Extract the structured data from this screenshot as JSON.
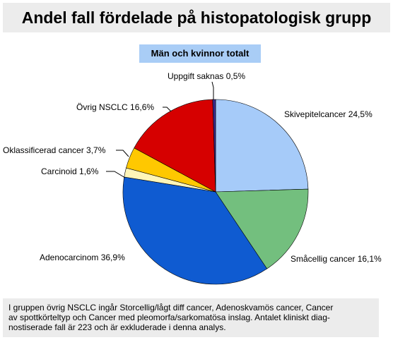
{
  "chart_data": {
    "type": "pie",
    "title": "Andel fall fördelade på histopatologisk grupp",
    "subtitle": "Män och kvinnor totalt",
    "slices": [
      {
        "label": "Skivepitelcancer 24,5%",
        "value": 24.5,
        "color": "#a6cbf9"
      },
      {
        "label": "Småcellig cancer 16,1%",
        "value": 16.1,
        "color": "#73bf7e"
      },
      {
        "label": "Adenocarcinom 36,9%",
        "value": 36.9,
        "color": "#0f5bd1"
      },
      {
        "label": "Carcinoid 1,6%",
        "value": 1.6,
        "color": "#fff5b8"
      },
      {
        "label": "Oklassificerad cancer 3,7%",
        "value": 3.7,
        "color": "#ffc800"
      },
      {
        "label": "Övrig NSCLC 16,6%",
        "value": 16.6,
        "color": "#d60000"
      },
      {
        "label": "Uppgift saknas 0,5%",
        "value": 0.5,
        "color": "#3a2a8c"
      }
    ]
  },
  "footnote": "I gruppen övrig NSCLC ingår Storcellig/lågt diff cancer, Adenoskvamös cancer, Cancer\nav spottkörteltyp och Cancer med pleomorfa/sarkomatösa inslag. Antalet kliniskt diag-\nnostiserade fall är 223 och är exkluderade i denna analys."
}
